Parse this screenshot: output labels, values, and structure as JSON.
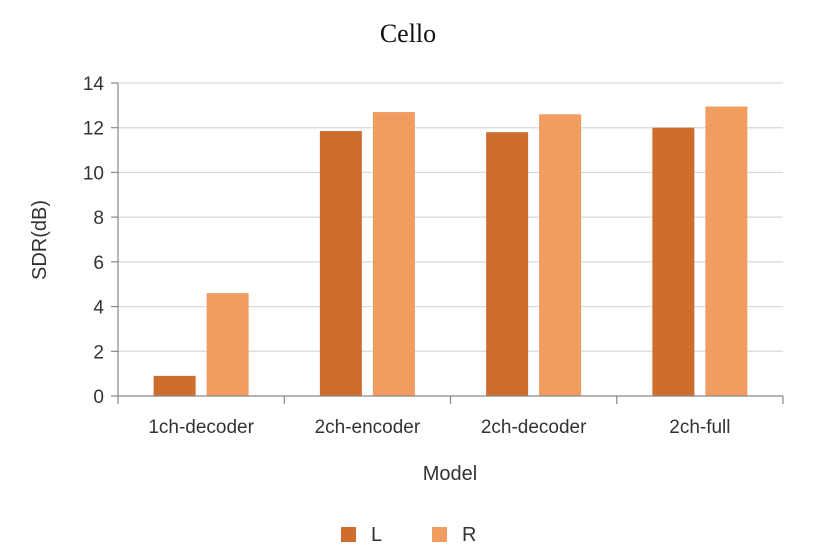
{
  "chart_data": {
    "type": "bar",
    "title": "Cello",
    "xlabel": "Model",
    "ylabel": "SDR(dB)",
    "categories": [
      "1ch-decoder",
      "2ch-encoder",
      "2ch-decoder",
      "2ch-full"
    ],
    "series": [
      {
        "name": "L",
        "color": "#cd6e2c",
        "values": [
          0.9,
          11.85,
          11.8,
          12.0
        ]
      },
      {
        "name": "R",
        "color": "#f19c61",
        "values": [
          4.6,
          12.7,
          12.6,
          12.95
        ]
      }
    ],
    "ylim": [
      0,
      14
    ],
    "yticks": [
      0,
      2,
      4,
      6,
      8,
      10,
      12,
      14
    ],
    "grid": true,
    "legend_position": "bottom"
  }
}
